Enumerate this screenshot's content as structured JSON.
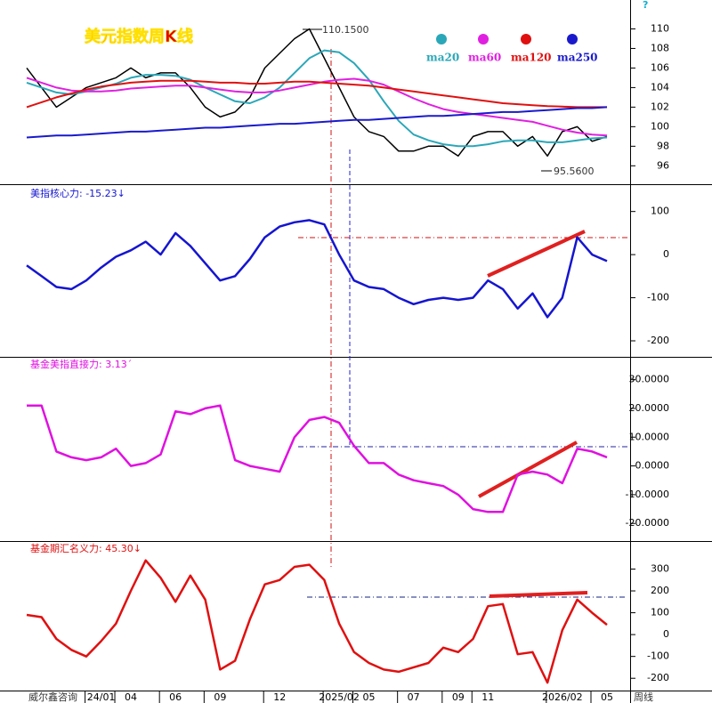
{
  "chart_data": [
    {
      "type": "line",
      "title": "美元指数周K线",
      "help": "?",
      "annotations": [
        "110.1500",
        "95.5600"
      ],
      "ylim": [
        94.3,
        112.5
      ],
      "yticks": [
        96,
        98,
        100,
        102,
        104,
        106,
        108,
        110
      ],
      "series": [
        {
          "color": "#000000",
          "values": [
            106,
            104,
            102,
            103,
            104,
            104.5,
            105,
            106,
            105,
            105.5,
            105.5,
            104,
            102,
            101,
            101.5,
            103,
            106,
            107.5,
            109,
            110,
            107,
            104,
            101,
            99.5,
            99,
            97.5,
            97.5,
            98,
            98,
            97,
            99,
            99.5,
            99.5,
            98,
            99,
            97,
            99.5,
            100,
            98.5,
            99
          ]
        },
        {
          "name": "ma20",
          "color": "#2aa7b8",
          "values": [
            104.5,
            104,
            103.5,
            103.3,
            103.6,
            104,
            104.4,
            105,
            105.3,
            105.3,
            105.2,
            104.8,
            104,
            103.3,
            102.6,
            102.4,
            103,
            104,
            105.5,
            107,
            107.8,
            107.6,
            106.5,
            104.8,
            102.6,
            100.6,
            99.2,
            98.6,
            98.2,
            98,
            98,
            98.2,
            98.5,
            98.6,
            98.6,
            98.4,
            98.4,
            98.6,
            98.8,
            98.9
          ]
        },
        {
          "name": "ma60",
          "color": "#e020e0",
          "values": [
            105,
            104.5,
            104,
            103.7,
            103.6,
            103.6,
            103.7,
            103.9,
            104,
            104.1,
            104.2,
            104.2,
            104,
            103.8,
            103.6,
            103.5,
            103.5,
            103.7,
            104,
            104.3,
            104.6,
            104.8,
            104.9,
            104.7,
            104.3,
            103.6,
            102.9,
            102.3,
            101.8,
            101.5,
            101.3,
            101.1,
            100.9,
            100.7,
            100.5,
            100.1,
            99.7,
            99.4,
            99.2,
            99.1
          ]
        },
        {
          "name": "ma120",
          "color": "#e01010",
          "values": [
            102,
            102.5,
            103,
            103.4,
            103.8,
            104.1,
            104.3,
            104.5,
            104.6,
            104.7,
            104.7,
            104.7,
            104.6,
            104.5,
            104.5,
            104.4,
            104.4,
            104.5,
            104.6,
            104.6,
            104.5,
            104.4,
            104.3,
            104.2,
            104,
            103.8,
            103.6,
            103.4,
            103.2,
            103,
            102.8,
            102.6,
            102.4,
            102.3,
            102.2,
            102.1,
            102.05,
            102,
            102,
            102
          ]
        },
        {
          "name": "ma250",
          "color": "#1a1acc",
          "values": [
            98.9,
            99,
            99.1,
            99.1,
            99.2,
            99.3,
            99.4,
            99.5,
            99.5,
            99.6,
            99.7,
            99.8,
            99.9,
            99.9,
            100,
            100.1,
            100.2,
            100.3,
            100.3,
            100.4,
            100.5,
            100.6,
            100.7,
            100.7,
            100.8,
            100.9,
            101,
            101.1,
            101.1,
            101.2,
            101.3,
            101.4,
            101.5,
            101.5,
            101.6,
            101.7,
            101.8,
            101.9,
            101.9,
            102
          ]
        }
      ]
    },
    {
      "type": "line",
      "title": "美指核心力: -15.23↓",
      "ylim": [
        -233,
        153
      ],
      "yticks": [
        -200,
        -100,
        0,
        100
      ],
      "series": [
        {
          "color": "#1515d0",
          "values": [
            -25,
            -50,
            -75,
            -80,
            -60,
            -30,
            -5,
            10,
            30,
            0,
            50,
            20,
            -20,
            -60,
            -50,
            -10,
            40,
            65,
            75,
            80,
            70,
            0,
            -60,
            -75,
            -80,
            -100,
            -115,
            -105,
            -100,
            -105,
            -100,
            -60,
            -80,
            -125,
            -90,
            -145,
            -100,
            40,
            0,
            -15
          ]
        }
      ]
    },
    {
      "type": "line",
      "title": "基金美指直接力: 3.13´",
      "ylim": [
        -25.5,
        37
      ],
      "yticks": [
        {
          "value": -20,
          "label": "-20.0000"
        },
        {
          "value": -10,
          "label": "-10.0000"
        },
        {
          "value": 0,
          "label": "0.0000"
        },
        {
          "value": 10,
          "label": "10.0000"
        },
        {
          "value": 20,
          "label": "20.0000"
        },
        {
          "value": 30,
          "label": "30.0000"
        }
      ],
      "series": [
        {
          "color": "#e010e0",
          "values": [
            21,
            21,
            5,
            3,
            2,
            3,
            6,
            0,
            1,
            4,
            19,
            18,
            20,
            21,
            2,
            0,
            -1,
            -2,
            10,
            16,
            17,
            15,
            7,
            1,
            1,
            -3,
            -5,
            -6,
            -7,
            -10,
            -15,
            -16,
            -16,
            -3,
            -2,
            -3,
            -6,
            6,
            5,
            3
          ]
        }
      ]
    },
    {
      "type": "line",
      "title": "基金期汇名义力: 45.30↓",
      "ylim": [
        -248,
        416
      ],
      "yticks": [
        -200,
        -100,
        0,
        100,
        200,
        300
      ],
      "watermark": "威尔鑫咨询",
      "period_label": "周线",
      "categories": [
        null,
        null,
        null,
        null,
        null,
        "24/01",
        null,
        "04",
        null,
        null,
        "06",
        null,
        null,
        "09",
        null,
        null,
        null,
        "12",
        null,
        null,
        null,
        "2025/02",
        null,
        "05",
        null,
        null,
        "07",
        null,
        null,
        "09",
        null,
        "11",
        null,
        null,
        null,
        null,
        "2026/02",
        null,
        null,
        "05"
      ],
      "series": [
        {
          "color": "#e01010",
          "values": [
            90,
            80,
            -20,
            -70,
            -100,
            -30,
            50,
            200,
            340,
            260,
            150,
            270,
            160,
            -160,
            -120,
            70,
            230,
            250,
            310,
            320,
            250,
            50,
            -80,
            -130,
            -160,
            -170,
            -150,
            -130,
            -60,
            -80,
            -20,
            130,
            140,
            -90,
            -80,
            -220,
            20,
            160,
            100,
            45
          ]
        }
      ]
    }
  ]
}
